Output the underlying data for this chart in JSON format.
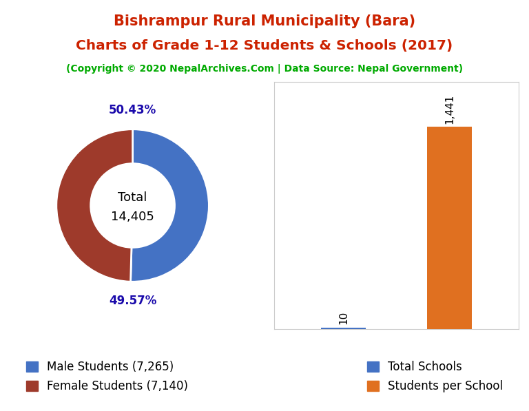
{
  "title_line1": "Bishrampur Rural Municipality (Bara)",
  "title_line2": "Charts of Grade 1-12 Students & Schools (2017)",
  "subtitle": "(Copyright © 2020 NepalArchives.Com | Data Source: Nepal Government)",
  "title_color": "#cc2200",
  "subtitle_color": "#00aa00",
  "male_students": 7265,
  "female_students": 7140,
  "total_students": 14405,
  "male_pct": "50.43%",
  "female_pct": "49.57%",
  "male_color": "#4472c4",
  "female_color": "#9e3a2b",
  "total_schools": 10,
  "students_per_school": 1441,
  "bar_schools_color": "#4472c4",
  "bar_students_color": "#e07020",
  "pct_color": "#1a0aab",
  "legend_fontsize": 12,
  "background_color": "#ffffff"
}
